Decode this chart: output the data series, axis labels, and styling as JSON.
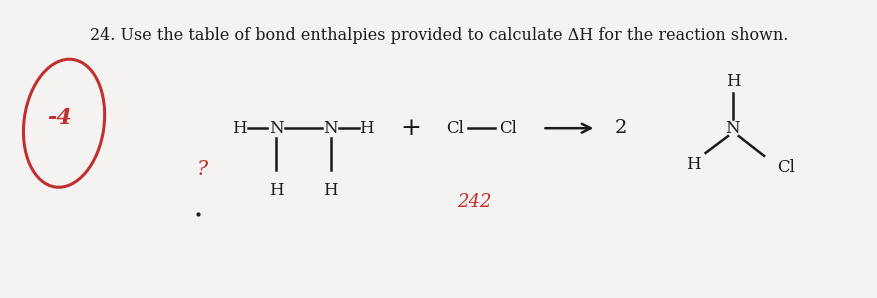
{
  "title_text": "24. Use the table of bond enthalpies provided to calculate ΔH for the reaction shown.",
  "bg_color": "#f4f3f1",
  "text_color": "#1a1a1a",
  "red_color": "#c03030",
  "annotation_242": "242",
  "annotation_2": "2",
  "annotation_question": "?",
  "annotation_minus4": "-4"
}
